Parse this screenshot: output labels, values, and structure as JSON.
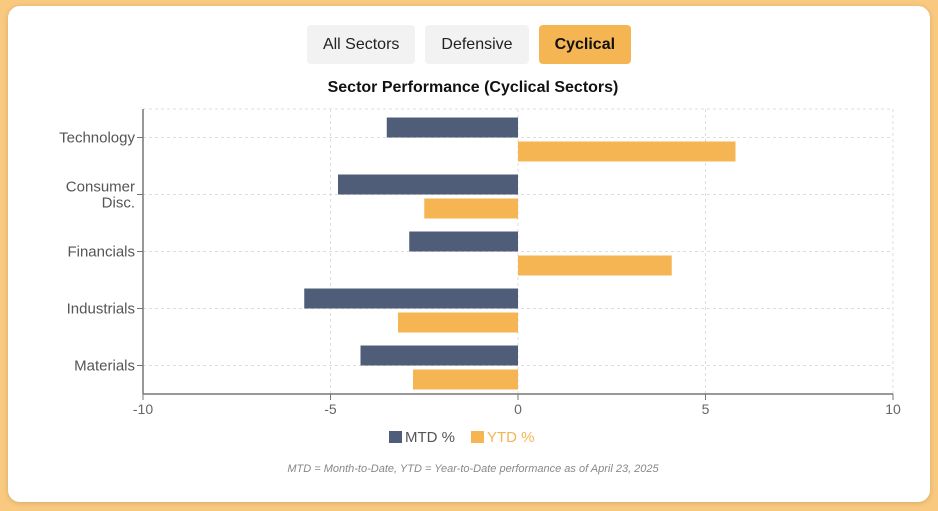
{
  "filters": [
    {
      "label": "All Sectors",
      "active": false
    },
    {
      "label": "Defensive",
      "active": false
    },
    {
      "label": "Cyclical",
      "active": true
    }
  ],
  "footnote": "MTD = Month-to-Date, YTD = Year-to-Date performance as of April 23, 2025",
  "colors": {
    "mtd": "#4f5d78",
    "ytd": "#f5b553",
    "grid": "#dddddd",
    "axis": "#777777"
  },
  "chart_data": {
    "type": "bar",
    "orientation": "horizontal",
    "title": "Sector Performance (Cyclical Sectors)",
    "categories": [
      "Technology",
      "Consumer Disc.",
      "Financials",
      "Industrials",
      "Materials"
    ],
    "category_lines": [
      [
        "Technology"
      ],
      [
        "Consumer",
        "Disc."
      ],
      [
        "Financials"
      ],
      [
        "Industrials"
      ],
      [
        "Materials"
      ]
    ],
    "series": [
      {
        "name": "MTD %",
        "values": [
          -3.5,
          -4.8,
          -2.9,
          -5.7,
          -4.2
        ]
      },
      {
        "name": "YTD %",
        "values": [
          5.8,
          -2.5,
          4.1,
          -3.2,
          -2.8
        ]
      }
    ],
    "xlim": [
      -10,
      10
    ],
    "xticks": [
      -10,
      -5,
      0,
      5,
      10
    ],
    "grid": true,
    "legend_position": "bottom"
  }
}
